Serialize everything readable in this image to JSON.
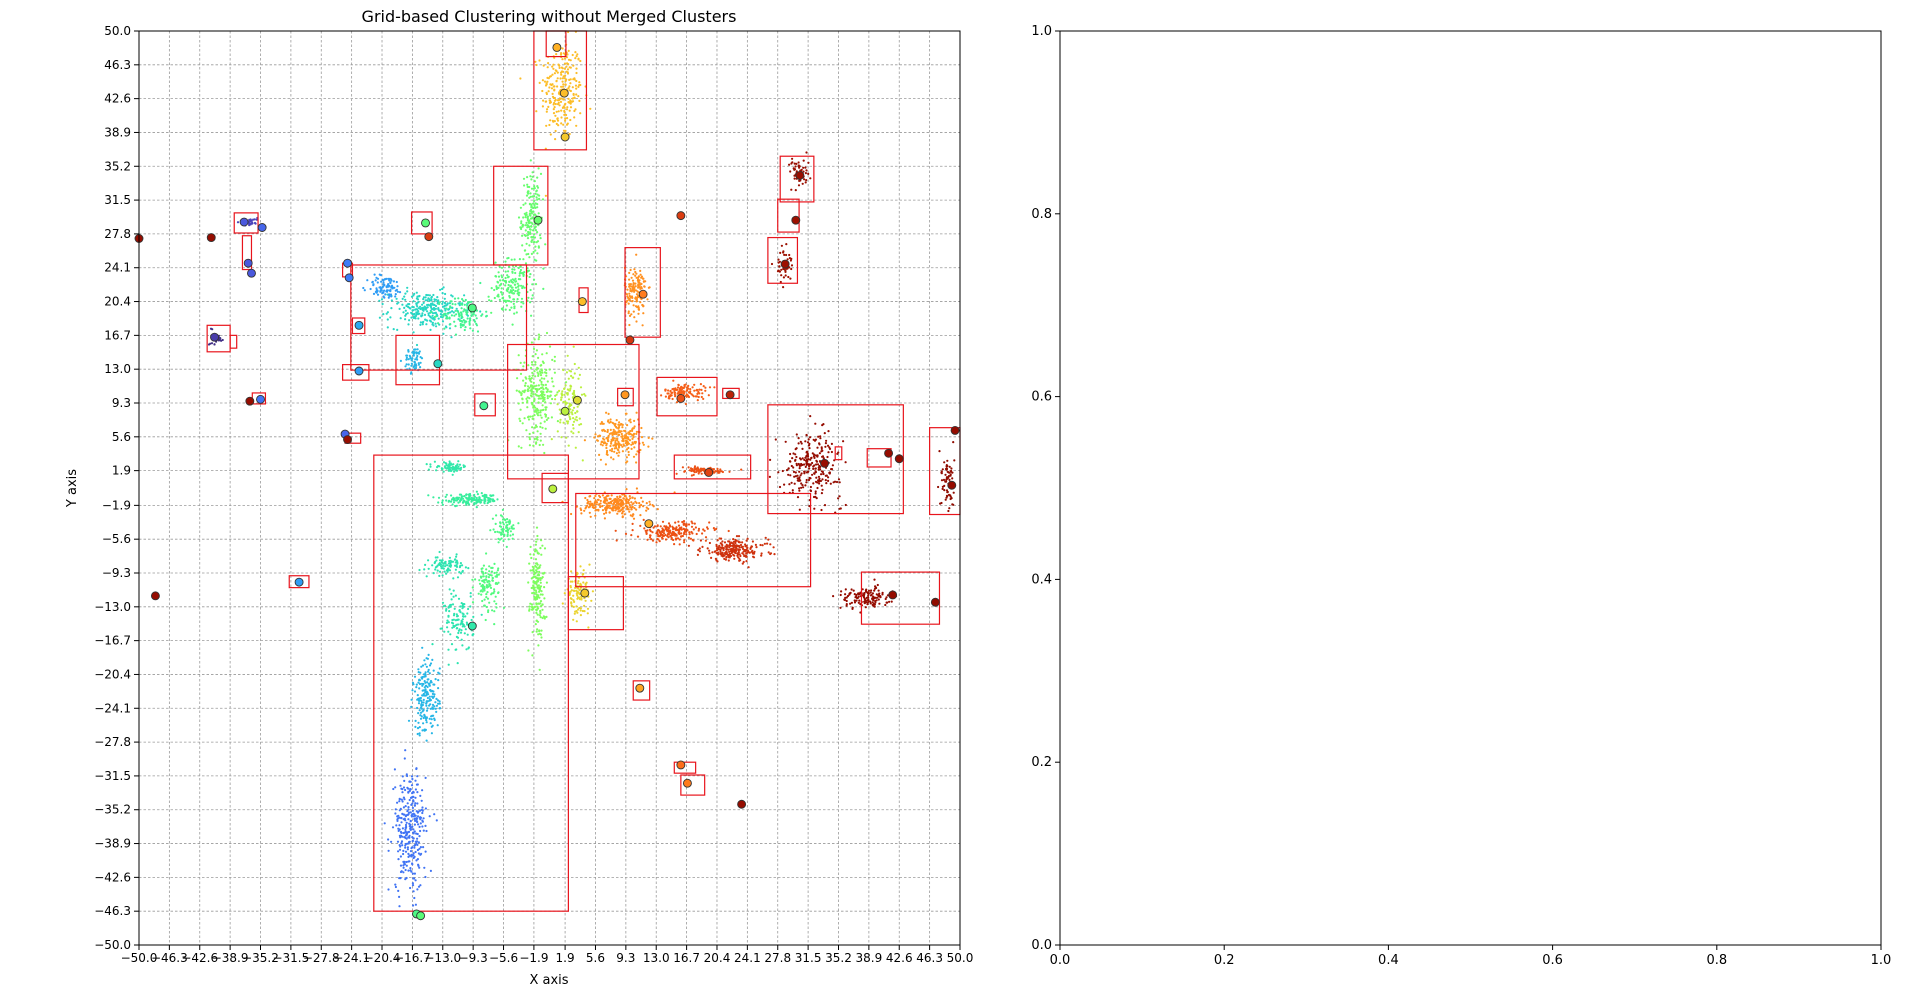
{
  "chart_data": [
    {
      "type": "scatter",
      "title": "Grid-based Clustering without Merged Clusters",
      "xlabel": "X axis",
      "ylabel": "Y axis",
      "xlim": [
        -50,
        50
      ],
      "ylim": [
        -50,
        50
      ],
      "grid": true,
      "colormap": "turbo",
      "xticks": [
        "-50.0",
        "-46.3",
        "-42.6",
        "-38.9",
        "-35.2",
        "-31.5",
        "-27.8",
        "-24.1",
        "-20.4",
        "-16.7",
        "-13.0",
        "-9.3",
        "-5.6",
        "-1.9",
        "1.9",
        "5.6",
        "9.3",
        "13.0",
        "16.7",
        "20.4",
        "24.1",
        "27.8",
        "31.5",
        "35.2",
        "38.9",
        "42.6",
        "46.3",
        "50.0"
      ],
      "yticks": [
        "-50.0",
        "-46.3",
        "-42.6",
        "-38.9",
        "-35.2",
        "-31.5",
        "-27.8",
        "-24.1",
        "-20.4",
        "-16.7",
        "-13.0",
        "-9.3",
        "-5.6",
        "-1.9",
        "1.9",
        "5.6",
        "9.3",
        "13.0",
        "16.7",
        "20.4",
        "24.1",
        "27.8",
        "31.5",
        "35.2",
        "38.9",
        "42.6",
        "46.3",
        "50.0"
      ],
      "point_clusters": [
        {
          "cx": 1.5,
          "cy": 43.5,
          "sx": 2.5,
          "sy": 5.5,
          "n": 260,
          "c": 0.66
        },
        {
          "cx": -2.2,
          "cy": 29.5,
          "sx": 1.2,
          "sy": 5,
          "n": 180,
          "c": 0.44
        },
        {
          "cx": -4.5,
          "cy": 22,
          "sx": 2.5,
          "sy": 3,
          "n": 180,
          "c": 0.42
        },
        {
          "cx": -15,
          "cy": 19.5,
          "sx": 4.5,
          "sy": 2,
          "n": 260,
          "c": 0.3
        },
        {
          "cx": -10.5,
          "cy": 19,
          "sx": 2.5,
          "sy": 2,
          "n": 120,
          "c": 0.38
        },
        {
          "cx": -20,
          "cy": 22,
          "sx": 2.2,
          "sy": 1.3,
          "n": 90,
          "c": 0.2
        },
        {
          "cx": -16.5,
          "cy": 14,
          "sx": 1.2,
          "sy": 1.4,
          "n": 60,
          "c": 0.24
        },
        {
          "cx": -1.5,
          "cy": 10.5,
          "sx": 2.2,
          "sy": 5,
          "n": 260,
          "c": 0.47
        },
        {
          "cx": 2.5,
          "cy": 9.5,
          "sx": 1.5,
          "sy": 4.5,
          "n": 120,
          "c": 0.55
        },
        {
          "cx": 8.5,
          "cy": 5.5,
          "sx": 2.8,
          "sy": 2.2,
          "n": 240,
          "c": 0.72
        },
        {
          "cx": 10.5,
          "cy": 21.5,
          "sx": 1.3,
          "sy": 2.8,
          "n": 150,
          "c": 0.73
        },
        {
          "cx": 16.5,
          "cy": 10.5,
          "sx": 2.5,
          "sy": 0.9,
          "n": 120,
          "c": 0.8
        },
        {
          "cx": 18.5,
          "cy": 1.9,
          "sx": 3.5,
          "sy": 0.4,
          "n": 90,
          "c": 0.82
        },
        {
          "cx": 8,
          "cy": -1.8,
          "sx": 4,
          "sy": 1.2,
          "n": 250,
          "c": 0.74
        },
        {
          "cx": 15,
          "cy": -4.8,
          "sx": 4.5,
          "sy": 1.1,
          "n": 200,
          "c": 0.82
        },
        {
          "cx": 22.5,
          "cy": -6.8,
          "sx": 4,
          "sy": 1.2,
          "n": 220,
          "c": 0.87
        },
        {
          "cx": 3.5,
          "cy": -11.5,
          "sx": 1.5,
          "sy": 2.2,
          "n": 110,
          "c": 0.62
        },
        {
          "cx": -9.5,
          "cy": -1.3,
          "sx": 3.5,
          "sy": 0.6,
          "n": 160,
          "c": 0.36
        },
        {
          "cx": -12,
          "cy": 2.3,
          "sx": 2,
          "sy": 0.5,
          "n": 70,
          "c": 0.34
        },
        {
          "cx": -5.5,
          "cy": -4.5,
          "sx": 1.5,
          "sy": 1.5,
          "n": 70,
          "c": 0.4
        },
        {
          "cx": -12.5,
          "cy": -8.5,
          "sx": 2,
          "sy": 1,
          "n": 90,
          "c": 0.33
        },
        {
          "cx": -7.5,
          "cy": -10.5,
          "sx": 1.5,
          "sy": 2.5,
          "n": 110,
          "c": 0.41
        },
        {
          "cx": -1.5,
          "cy": -11,
          "sx": 0.9,
          "sy": 5.5,
          "n": 180,
          "c": 0.47
        },
        {
          "cx": -11,
          "cy": -14.5,
          "sx": 1.8,
          "sy": 3.5,
          "n": 120,
          "c": 0.33
        },
        {
          "cx": -15,
          "cy": -23,
          "sx": 1.6,
          "sy": 4,
          "n": 200,
          "c": 0.24
        },
        {
          "cx": -17,
          "cy": -37.5,
          "sx": 2,
          "sy": 6.5,
          "n": 320,
          "c": 0.14
        },
        {
          "cx": 32,
          "cy": 2.5,
          "sx": 3.5,
          "sy": 3.5,
          "n": 260,
          "c": 0.97
        },
        {
          "cx": 38.5,
          "cy": -12,
          "sx": 3,
          "sy": 1.2,
          "n": 140,
          "c": 0.97
        },
        {
          "cx": 30.5,
          "cy": 34.5,
          "sx": 1.2,
          "sy": 1.6,
          "n": 60,
          "c": 0.96
        },
        {
          "cx": 28.5,
          "cy": 24.5,
          "sx": 0.9,
          "sy": 1.8,
          "n": 50,
          "c": 0.95
        },
        {
          "cx": 48.5,
          "cy": 0.5,
          "sx": 0.8,
          "sy": 3.5,
          "n": 70,
          "c": 0.99
        },
        {
          "cx": -40.5,
          "cy": 16.5,
          "sx": 0.8,
          "sy": 0.8,
          "n": 30,
          "c": 0.04
        },
        {
          "cx": -36.5,
          "cy": 29,
          "sx": 0.9,
          "sy": 0.5,
          "n": 30,
          "c": 0.07
        }
      ],
      "centers": [
        {
          "x": 0.9,
          "y": 48.2,
          "c": 0.68
        },
        {
          "x": 1.8,
          "y": 43.2,
          "c": 0.66
        },
        {
          "x": 1.9,
          "y": 38.4,
          "c": 0.64
        },
        {
          "x": -1.4,
          "y": 29.3,
          "c": 0.44
        },
        {
          "x": -15.1,
          "y": 29.0,
          "c": 0.42
        },
        {
          "x": -14.7,
          "y": 27.5,
          "c": 0.85
        },
        {
          "x": -50.0,
          "y": 27.3,
          "c": 0.97
        },
        {
          "x": -41.2,
          "y": 27.4,
          "c": 0.97
        },
        {
          "x": -37.2,
          "y": 29.1,
          "c": 0.1
        },
        {
          "x": -35.0,
          "y": 28.5,
          "c": 0.12
        },
        {
          "x": -36.7,
          "y": 24.6,
          "c": 0.1
        },
        {
          "x": -36.3,
          "y": 23.5,
          "c": 0.1
        },
        {
          "x": -24.6,
          "y": 24.6,
          "c": 0.15
        },
        {
          "x": -24.4,
          "y": 23.0,
          "c": 0.15
        },
        {
          "x": -23.2,
          "y": 17.8,
          "c": 0.22
        },
        {
          "x": -9.4,
          "y": 19.7,
          "c": 0.4
        },
        {
          "x": -13.6,
          "y": 13.6,
          "c": 0.3
        },
        {
          "x": -23.2,
          "y": 12.8,
          "c": 0.2
        },
        {
          "x": -8.0,
          "y": 9.0,
          "c": 0.38
        },
        {
          "x": 1.9,
          "y": 8.4,
          "c": 0.55
        },
        {
          "x": 3.4,
          "y": 9.6,
          "c": 0.6
        },
        {
          "x": 4.0,
          "y": 20.4,
          "c": 0.66
        },
        {
          "x": 9.8,
          "y": 16.2,
          "c": 0.86
        },
        {
          "x": 11.4,
          "y": 21.2,
          "c": 0.76
        },
        {
          "x": 16.0,
          "y": 29.8,
          "c": 0.85
        },
        {
          "x": 9.2,
          "y": 10.2,
          "c": 0.72
        },
        {
          "x": 16.0,
          "y": 9.8,
          "c": 0.82
        },
        {
          "x": 22.0,
          "y": 10.2,
          "c": 0.9
        },
        {
          "x": 19.4,
          "y": 1.7,
          "c": 0.84
        },
        {
          "x": -40.8,
          "y": 16.5,
          "c": 0.06
        },
        {
          "x": -36.5,
          "y": 9.5,
          "c": 0.97
        },
        {
          "x": -35.2,
          "y": 9.7,
          "c": 0.14
        },
        {
          "x": -24.9,
          "y": 5.9,
          "c": 0.12
        },
        {
          "x": -24.6,
          "y": 5.3,
          "c": 0.96
        },
        {
          "x": 0.4,
          "y": -0.1,
          "c": 0.55
        },
        {
          "x": 12.1,
          "y": -3.9,
          "c": 0.68
        },
        {
          "x": 4.3,
          "y": -11.5,
          "c": 0.64
        },
        {
          "x": -9.4,
          "y": -15.1,
          "c": 0.34
        },
        {
          "x": -30.5,
          "y": -10.3,
          "c": 0.2
        },
        {
          "x": -48.0,
          "y": -11.8,
          "c": 0.97
        },
        {
          "x": 11.0,
          "y": -21.9,
          "c": 0.7
        },
        {
          "x": 16.0,
          "y": -30.3,
          "c": 0.78
        },
        {
          "x": 16.8,
          "y": -32.3,
          "c": 0.76
        },
        {
          "x": 23.4,
          "y": -34.6,
          "c": 0.97
        },
        {
          "x": 30.5,
          "y": 34.2,
          "c": 0.96
        },
        {
          "x": 30.0,
          "y": 29.3,
          "c": 0.95
        },
        {
          "x": 28.7,
          "y": 24.5,
          "c": 0.95
        },
        {
          "x": 33.5,
          "y": 2.7,
          "c": 0.96
        },
        {
          "x": 41.3,
          "y": 3.8,
          "c": 0.97
        },
        {
          "x": 42.6,
          "y": 3.2,
          "c": 1.0
        },
        {
          "x": 49.4,
          "y": 6.3,
          "c": 0.97
        },
        {
          "x": 49.0,
          "y": 0.3,
          "c": 0.97
        },
        {
          "x": 41.8,
          "y": -11.7,
          "c": 0.97
        },
        {
          "x": 47.0,
          "y": -12.5,
          "c": 1.0
        },
        {
          "x": -16.2,
          "y": -46.6,
          "c": 0.4
        },
        {
          "x": -15.7,
          "y": -46.8,
          "c": 0.42
        }
      ],
      "boxes": [
        [
          -0.4,
          47.2,
          2.0,
          50.0
        ],
        [
          -1.9,
          37.0,
          4.5,
          50.0
        ],
        [
          -6.8,
          24.4,
          -0.2,
          35.2
        ],
        [
          -24.2,
          12.9,
          -2.8,
          24.4
        ],
        [
          -25.2,
          23.1,
          -24.0,
          24.6
        ],
        [
          -24.0,
          16.9,
          -22.5,
          18.6
        ],
        [
          -25.2,
          11.8,
          -22.0,
          13.5
        ],
        [
          -18.7,
          11.3,
          -13.4,
          16.7
        ],
        [
          -16.8,
          27.8,
          -14.3,
          30.2
        ],
        [
          -38.4,
          27.9,
          -35.5,
          30.1
        ],
        [
          -37.4,
          23.9,
          -36.3,
          27.6
        ],
        [
          -41.7,
          14.9,
          -38.9,
          17.8
        ],
        [
          -38.9,
          15.3,
          -38.1,
          16.7
        ],
        [
          -36.2,
          9.2,
          -34.6,
          10.4
        ],
        [
          -24.9,
          4.9,
          -23.0,
          6.0
        ],
        [
          -9.1,
          7.9,
          -6.6,
          10.3
        ],
        [
          -5.1,
          1.0,
          10.9,
          15.7
        ],
        [
          3.6,
          19.2,
          4.7,
          21.9
        ],
        [
          9.2,
          16.5,
          13.5,
          26.3
        ],
        [
          8.3,
          9.0,
          10.2,
          10.9
        ],
        [
          13.1,
          7.9,
          20.4,
          12.1
        ],
        [
          21.1,
          9.8,
          23.1,
          10.9
        ],
        [
          15.2,
          1.0,
          24.5,
          3.6
        ],
        [
          -21.4,
          -46.3,
          2.3,
          3.6
        ],
        [
          -0.9,
          -1.6,
          2.3,
          1.6
        ],
        [
          3.2,
          -10.8,
          31.8,
          -0.6
        ],
        [
          2.3,
          -15.5,
          9.0,
          -9.7
        ],
        [
          -31.7,
          -10.9,
          -29.3,
          -9.6
        ],
        [
          10.2,
          -23.2,
          12.2,
          -21.1
        ],
        [
          15.2,
          -31.2,
          17.8,
          -30.0
        ],
        [
          16.0,
          -33.6,
          18.9,
          -31.4
        ],
        [
          28.1,
          31.3,
          32.2,
          36.3
        ],
        [
          27.8,
          28.0,
          30.4,
          31.6
        ],
        [
          26.6,
          22.4,
          30.2,
          27.4
        ],
        [
          26.6,
          -2.8,
          43.1,
          9.1
        ],
        [
          34.8,
          3.1,
          35.6,
          4.5
        ],
        [
          38.7,
          2.3,
          41.6,
          4.3
        ],
        [
          46.3,
          -2.9,
          50.0,
          6.6
        ],
        [
          38.0,
          -14.9,
          47.5,
          -9.2
        ]
      ]
    },
    {
      "type": "scatter",
      "title": "",
      "xlabel": "",
      "ylabel": "",
      "xlim": [
        0,
        1
      ],
      "ylim": [
        0,
        1
      ],
      "xticks": [
        "0.0",
        "0.2",
        "0.4",
        "0.6",
        "0.8",
        "1.0"
      ],
      "yticks": [
        "0.0",
        "0.2",
        "0.4",
        "0.6",
        "0.8",
        "1.0"
      ],
      "grid": false
    }
  ]
}
